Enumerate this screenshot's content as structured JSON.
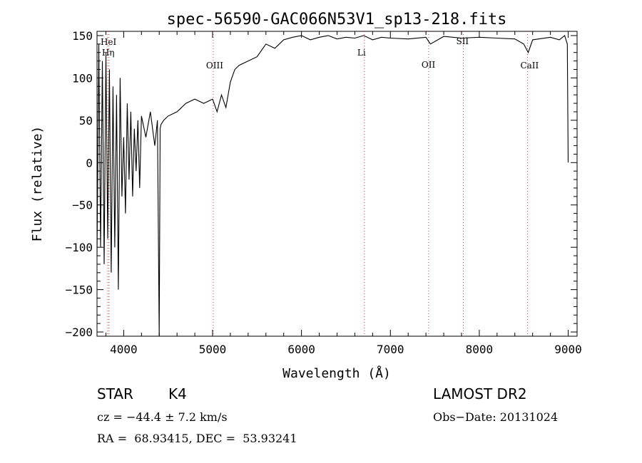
{
  "chart_data": {
    "type": "line",
    "title": "spec-56590-GAC066N53V1_sp13-218.fits",
    "xlabel": "Wavelength (Å)",
    "ylabel": "Flux (relative)",
    "xlim": [
      3700,
      9100
    ],
    "ylim": [
      -205,
      155
    ],
    "xticks": [
      4000,
      5000,
      6000,
      7000,
      8000,
      9000
    ],
    "yticks": [
      -200,
      -150,
      -100,
      -50,
      0,
      50,
      100,
      150
    ],
    "grid": false,
    "series": [
      {
        "x": [
          3700,
          3720,
          3740,
          3760,
          3780,
          3800,
          3820,
          3840,
          3860,
          3880,
          3900,
          3920,
          3940,
          3960,
          3980,
          4000,
          4020,
          4040,
          4060,
          4080,
          4100,
          4120,
          4140,
          4160,
          4180,
          4200,
          4250,
          4300,
          4350,
          4380,
          4400,
          4410,
          4420,
          4450,
          4500,
          4600,
          4700,
          4800,
          4900,
          5000,
          5050,
          5100,
          5150,
          5200,
          5250,
          5300,
          5400,
          5500,
          5600,
          5700,
          5800,
          5900,
          6000,
          6100,
          6200,
          6300,
          6400,
          6500,
          6600,
          6700,
          6800,
          6900,
          7000,
          7200,
          7400,
          7450,
          7600,
          7800,
          8000,
          8200,
          8400,
          8500,
          8550,
          8600,
          8800,
          8900,
          8960,
          8990,
          9000
        ],
        "y": [
          -110,
          140,
          -100,
          120,
          -120,
          130,
          -90,
          110,
          -130,
          90,
          -100,
          80,
          -150,
          100,
          -40,
          30,
          -60,
          70,
          -20,
          60,
          -40,
          40,
          -10,
          50,
          -30,
          55,
          30,
          60,
          20,
          50,
          -205,
          40,
          45,
          50,
          55,
          60,
          70,
          75,
          70,
          75,
          60,
          80,
          65,
          95,
          110,
          115,
          120,
          125,
          140,
          135,
          145,
          148,
          150,
          145,
          148,
          150,
          146,
          148,
          147,
          150,
          145,
          148,
          147,
          146,
          148,
          140,
          149,
          147,
          148,
          147,
          146,
          140,
          130,
          145,
          148,
          145,
          150,
          140,
          0
        ]
      }
    ],
    "lines": [
      {
        "label": "HeI",
        "x": 3820
      },
      {
        "label": "Hη",
        "x": 3835
      },
      {
        "label": "OIII",
        "x": 5007
      },
      {
        "label": "Li",
        "x": 6708
      },
      {
        "label": "OII",
        "x": 7430
      },
      {
        "label": "SII",
        "x": 7820
      },
      {
        "label": "CaII",
        "x": 8542
      }
    ]
  },
  "info": {
    "object_class": "STAR",
    "subclass": "K4",
    "survey": "LAMOST DR2",
    "cz_line": "cz = −44.4 ± 7.2 km/s",
    "obs_date": "Obs−Date: 20131024",
    "radec": "RA =  68.93415, DEC =  53.93241"
  }
}
